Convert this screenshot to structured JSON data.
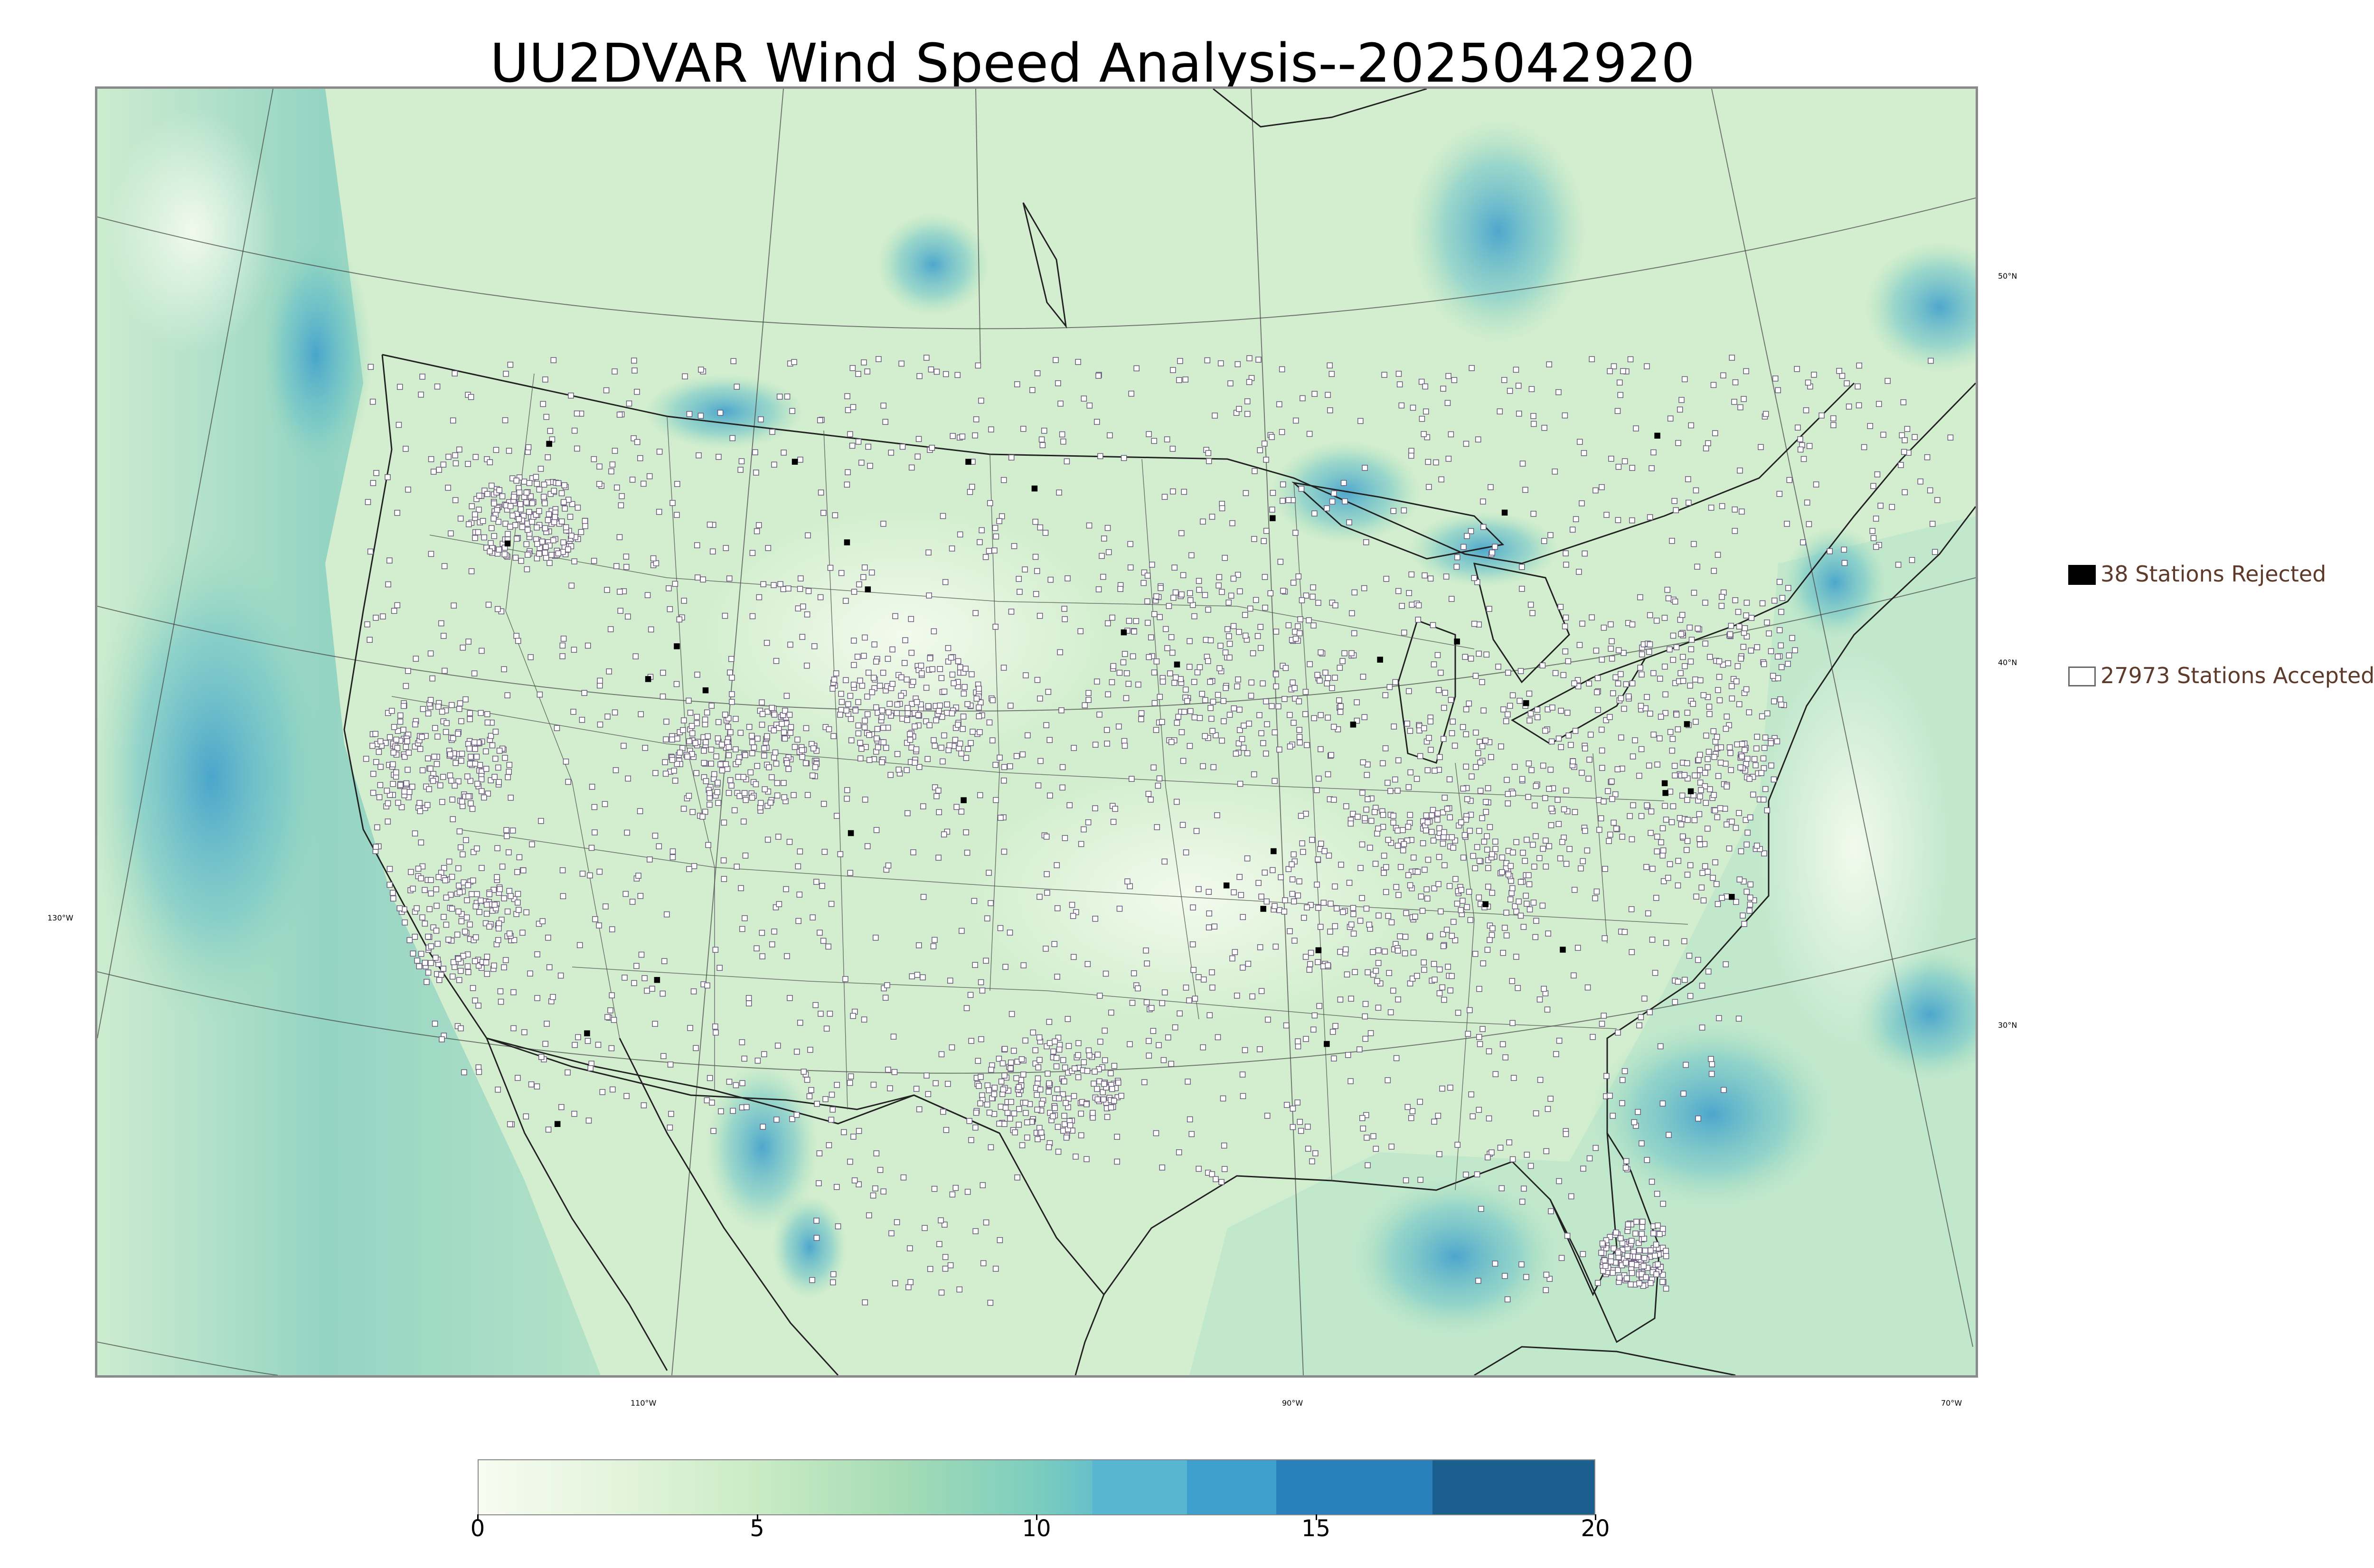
{
  "title": "UU2DVAR Wind Speed Analysis--2025042920",
  "map": {
    "projection": "lambert-conformal",
    "field": "wind speed",
    "graticule": {
      "latitude_labels": [
        "50°N",
        "40°N",
        "30°N"
      ],
      "longitude_labels": [
        "130°W",
        "110°W",
        "90°W",
        "70°W"
      ]
    },
    "colors": {
      "land_background": "#d8f0d2",
      "ocean_low": "#c7ead0",
      "high_wind": "#3f9fcc",
      "very_high_wind": "#2a7fbd",
      "coastline": "#222222",
      "state_border": "#555555",
      "graticule": "#444444",
      "station_accepted_fill": "#ffffff",
      "station_accepted_edge": "#6a5a7a",
      "station_rejected": "#000000"
    }
  },
  "legend": {
    "rejected": {
      "label": "38 Stations Rejected",
      "count": 38,
      "icon": "filled-black-square-icon"
    },
    "accepted": {
      "label": "27973 Stations Accepted",
      "count": 27973,
      "icon": "hollow-square-icon"
    }
  },
  "colorbar": {
    "min": 0,
    "max": 20,
    "tick_labels": [
      "0",
      "5",
      "10",
      "15",
      "20"
    ],
    "tick_values": [
      0,
      5,
      10,
      15,
      20
    ],
    "smooth_to": 11,
    "stops": [
      {
        "value": 0,
        "color": "#f7fcf0"
      },
      {
        "value": 2.5,
        "color": "#e3f4dc"
      },
      {
        "value": 5,
        "color": "#c9ebc4"
      },
      {
        "value": 7.5,
        "color": "#a6dcb5"
      },
      {
        "value": 10,
        "color": "#7ccdbe"
      },
      {
        "value": 11,
        "color": "#67c0ca"
      }
    ],
    "bands": [
      {
        "from": 11,
        "to": 12.7,
        "color": "#59b6d3"
      },
      {
        "from": 12.7,
        "to": 14.3,
        "color": "#3f9fcc"
      },
      {
        "from": 14.3,
        "to": 17.1,
        "color": "#2a80ba"
      },
      {
        "from": 17.1,
        "to": 20,
        "color": "#1b5f8f"
      }
    ]
  }
}
